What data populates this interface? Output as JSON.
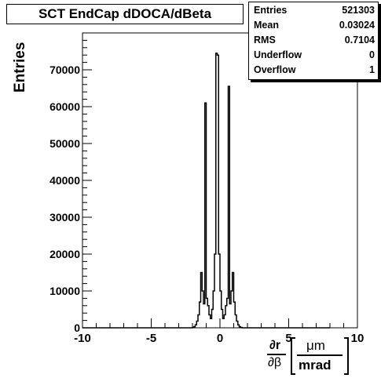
{
  "chart_data": {
    "type": "bar",
    "title": "SCT EndCap dDOCA/dBeta",
    "ylabel": "Entries",
    "xlabel": {
      "numerator": "∂r",
      "denominator": "∂β",
      "unit_top": "μm",
      "unit_bottom": "mrad"
    },
    "xlim": [
      -10,
      10
    ],
    "ylim": [
      0,
      80000
    ],
    "xticks": [
      "-10",
      "-5",
      "0",
      "5",
      "10"
    ],
    "yticks": [
      "0",
      "10000",
      "20000",
      "30000",
      "40000",
      "50000",
      "60000",
      "70000"
    ],
    "ytick_values": [
      0,
      10000,
      20000,
      30000,
      40000,
      50000,
      60000,
      70000
    ],
    "xtick_values": [
      -10,
      -5,
      0,
      5,
      10
    ],
    "stats": [
      {
        "label": "Entries",
        "value": "521303"
      },
      {
        "label": "Mean",
        "value": "0.03024"
      },
      {
        "label": "RMS",
        "value": "0.7104"
      },
      {
        "label": "Underflow",
        "value": "0"
      },
      {
        "label": "Overflow",
        "value": "1"
      }
    ],
    "histogram_bins": {
      "x_start": -10,
      "bin_width": 0.1,
      "values": [
        0,
        0,
        0,
        0,
        0,
        0,
        0,
        0,
        0,
        0,
        0,
        0,
        0,
        0,
        0,
        0,
        0,
        0,
        0,
        0,
        0,
        0,
        0,
        0,
        0,
        0,
        0,
        0,
        0,
        0,
        0,
        0,
        0,
        0,
        0,
        0,
        0,
        0,
        0,
        0,
        0,
        0,
        0,
        0,
        0,
        0,
        0,
        0,
        0,
        0,
        0,
        0,
        0,
        0,
        0,
        0,
        0,
        0,
        0,
        0,
        0,
        0,
        0,
        0,
        0,
        0,
        0,
        0,
        0,
        0,
        0,
        0,
        0,
        0,
        0,
        0,
        0,
        0,
        0,
        0,
        100,
        300,
        800,
        1800,
        3500,
        7000,
        15000,
        10000,
        6500,
        61000,
        8000,
        6000,
        3500,
        2500,
        5000,
        10000,
        20000,
        74500,
        74000,
        20000,
        10000,
        5000,
        2500,
        3500,
        6000,
        8000,
        65500,
        6500,
        10000,
        15000,
        7000,
        3500,
        1800,
        800,
        300,
        100,
        0,
        0,
        0,
        0,
        0,
        0,
        0,
        0,
        0,
        0,
        0,
        0,
        0,
        0,
        0,
        0,
        0,
        0,
        0,
        0,
        0,
        0,
        0,
        0,
        0,
        0,
        0,
        0,
        0,
        0,
        0,
        0,
        0,
        0,
        0,
        0,
        0,
        0,
        0,
        0,
        0,
        0,
        0,
        0,
        0,
        0,
        0,
        0,
        0,
        0,
        0,
        0,
        0,
        0,
        0,
        0,
        0,
        0,
        0,
        0,
        0,
        0,
        0,
        0
      ]
    }
  },
  "colors": {
    "background": "#ffffff",
    "line": "#000000",
    "shadow": "#000000"
  }
}
